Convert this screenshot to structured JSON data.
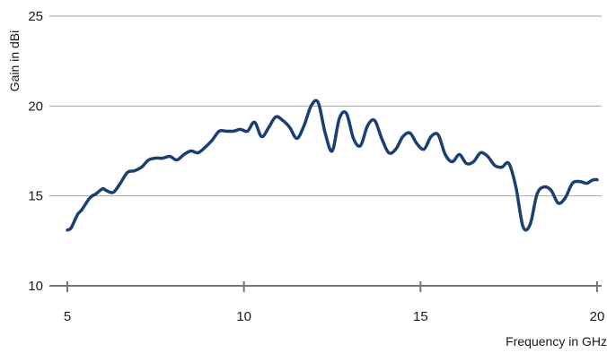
{
  "chart_data": {
    "type": "line",
    "title": "",
    "xlabel": "Frequency in GHz",
    "ylabel": "Gain in dBi",
    "xlim": [
      5,
      20
    ],
    "ylim": [
      10,
      25
    ],
    "xticks": [
      5,
      10,
      15,
      20
    ],
    "yticks": [
      10,
      15,
      20,
      25
    ],
    "x_tick_labels": [
      "5",
      "10",
      "15",
      "20"
    ],
    "y_tick_labels": [
      "10",
      "15",
      "20",
      "25"
    ],
    "grid": "horizontal",
    "legend": "none",
    "colors": {
      "line": "#1c3f73",
      "grid": "#a6a6a6",
      "axis": "#777777"
    },
    "series": [
      {
        "x": [
          5.0,
          5.1,
          5.2,
          5.3,
          5.4,
          5.5,
          5.6,
          5.7,
          5.8,
          6.0,
          6.1,
          6.3,
          6.5,
          6.7,
          6.9,
          7.1,
          7.3,
          7.5,
          7.7,
          7.9,
          8.1,
          8.3,
          8.5,
          8.7,
          8.9,
          9.1,
          9.3,
          9.5,
          9.7,
          9.9,
          10.1,
          10.3,
          10.5,
          10.7,
          10.9,
          11.1,
          11.3,
          11.5,
          11.7,
          11.9,
          12.1,
          12.3,
          12.5,
          12.7,
          12.9,
          13.1,
          13.3,
          13.5,
          13.7,
          13.9,
          14.1,
          14.3,
          14.5,
          14.7,
          14.9,
          15.1,
          15.3,
          15.5,
          15.7,
          15.9,
          16.1,
          16.3,
          16.5,
          16.7,
          16.9,
          17.1,
          17.3,
          17.5,
          17.7,
          17.9,
          18.1,
          18.3,
          18.5,
          18.7,
          18.9,
          19.1,
          19.3,
          19.5,
          19.7,
          19.8,
          19.9,
          20.0
        ],
        "y": [
          13.1,
          13.2,
          13.6,
          14.0,
          14.2,
          14.5,
          14.8,
          15.0,
          15.1,
          15.4,
          15.3,
          15.2,
          15.7,
          16.3,
          16.4,
          16.6,
          17.0,
          17.1,
          17.1,
          17.2,
          17.0,
          17.3,
          17.5,
          17.4,
          17.7,
          18.1,
          18.6,
          18.6,
          18.6,
          18.7,
          18.6,
          19.1,
          18.3,
          18.8,
          19.4,
          19.2,
          18.8,
          18.2,
          18.9,
          20.0,
          20.2,
          18.5,
          17.5,
          19.3,
          19.6,
          18.2,
          17.8,
          18.9,
          19.2,
          18.2,
          17.4,
          17.6,
          18.3,
          18.5,
          17.9,
          17.6,
          18.3,
          18.4,
          17.3,
          16.9,
          17.3,
          16.8,
          16.9,
          17.4,
          17.2,
          16.7,
          16.6,
          16.8,
          15.5,
          13.3,
          13.4,
          15.1,
          15.5,
          15.3,
          14.6,
          14.9,
          15.7,
          15.8,
          15.7,
          15.8,
          15.9,
          15.9
        ]
      }
    ]
  }
}
